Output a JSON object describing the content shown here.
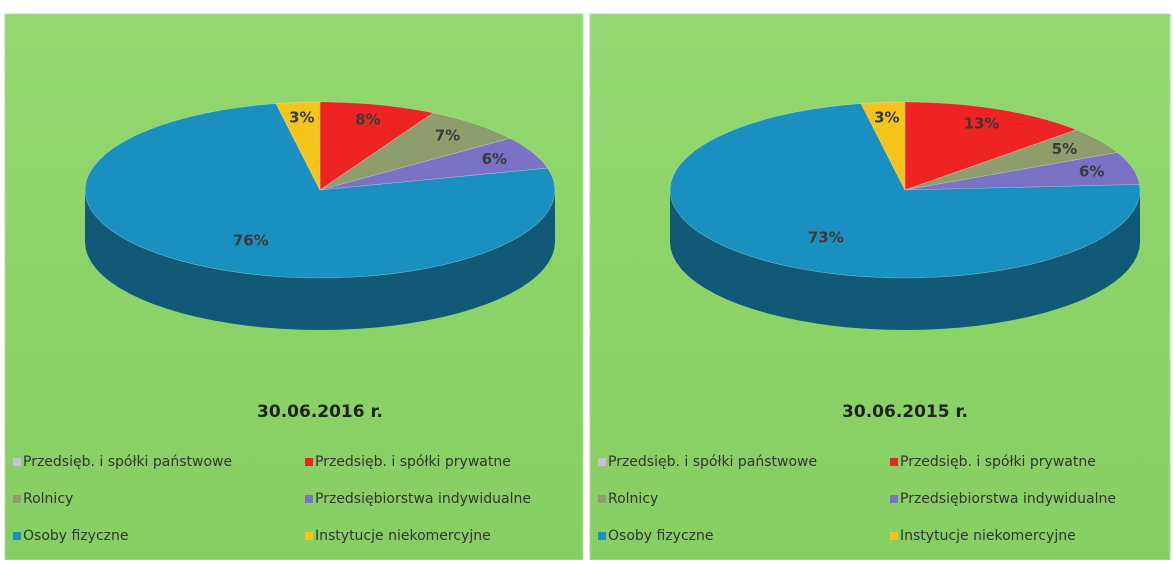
{
  "chart_data": [
    {
      "type": "pie",
      "title": "30.06.2016 r.",
      "categories": [
        "Przedsięb. i spółki państwowe",
        "Przedsięb. i spółki prywatne",
        "Rolnicy",
        "Przedsiębiorstwa indywidualne",
        "Osoby fizyczne",
        "Instytucje niekomercyjne"
      ],
      "values": [
        0,
        8,
        7,
        6,
        76,
        3
      ],
      "value_labels": [
        null,
        "8%",
        "7%",
        "6%",
        "76%",
        "3%"
      ],
      "colors": [
        "#cbbce0",
        "#ee2424",
        "#8d9d6c",
        "#7a72c4",
        "#1990c0",
        "#f4c41a"
      ]
    },
    {
      "type": "pie",
      "title": "30.06.2015 r.",
      "categories": [
        "Przedsięb. i spółki państwowe",
        "Przedsięb. i spółki prywatne",
        "Rolnicy",
        "Przedsiębiorstwa indywidualne",
        "Osoby fizyczne",
        "Instytucje niekomercyjne"
      ],
      "values": [
        0,
        13,
        5,
        6,
        73,
        3
      ],
      "value_labels": [
        null,
        "13%",
        "5%",
        "6%",
        "73%",
        "3%"
      ],
      "colors": [
        "#cbbce0",
        "#ee2424",
        "#8d9d6c",
        "#7a72c4",
        "#1990c0",
        "#f4c41a"
      ]
    }
  ]
}
